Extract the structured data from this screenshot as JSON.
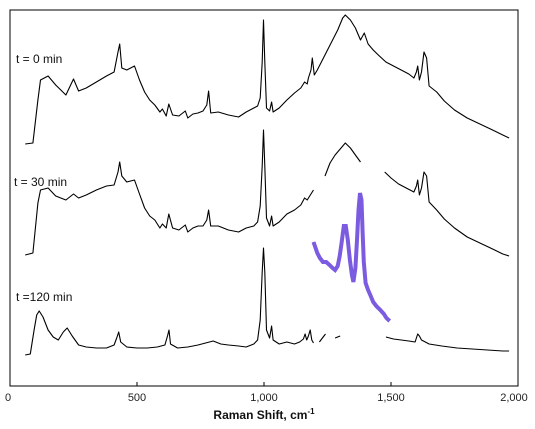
{
  "chart_data": {
    "type": "line",
    "xlabel": "Raman Shift, cm",
    "xlabel_superscript": "-1",
    "xlim": [
      0,
      2000
    ],
    "x_ticks": [
      0,
      500,
      1000,
      1500,
      2000
    ],
    "x_tick_labels": [
      "0",
      "500",
      "1,000",
      "1,500",
      "2,000"
    ],
    "y_axis": "none",
    "grid": false,
    "line_color": "#000000",
    "highlight_color": "#7b5ce0",
    "series": [
      {
        "name": "t = 0 min",
        "segments": [
          [
            [
              60,
              144
            ],
            [
              90,
              143
            ],
            [
              110,
              100
            ],
            [
              120,
              80
            ],
            [
              150,
              76
            ],
            [
              180,
              85
            ],
            [
              220,
              95
            ],
            [
              250,
              79
            ],
            [
              270,
              91
            ],
            [
              300,
              88
            ],
            [
              340,
              82
            ],
            [
              380,
              76
            ],
            [
              410,
              72
            ],
            [
              425,
              52
            ],
            [
              432,
              44
            ],
            [
              440,
              68
            ],
            [
              460,
              70
            ],
            [
              490,
              66
            ],
            [
              510,
              80
            ],
            [
              530,
              92
            ],
            [
              550,
              100
            ],
            [
              570,
              105
            ],
            [
              590,
              112
            ],
            [
              600,
              109
            ],
            [
              615,
              116
            ],
            [
              625,
              104
            ],
            [
              640,
              115
            ],
            [
              665,
              116
            ],
            [
              690,
              111
            ],
            [
              700,
              118
            ],
            [
              720,
              114
            ],
            [
              740,
              113
            ],
            [
              760,
              111
            ],
            [
              775,
              105
            ],
            [
              782,
              91
            ],
            [
              790,
              113
            ],
            [
              820,
              112
            ],
            [
              860,
              115
            ],
            [
              900,
              117
            ],
            [
              930,
              112
            ],
            [
              960,
              108
            ],
            [
              975,
              106
            ],
            [
              985,
              98
            ],
            [
              993,
              62
            ],
            [
              998,
              20
            ],
            [
              1003,
              62
            ],
            [
              1010,
              108
            ],
            [
              1022,
              111
            ],
            [
              1030,
              102
            ],
            [
              1036,
              112
            ],
            [
              1060,
              108
            ],
            [
              1090,
              100
            ],
            [
              1120,
              93
            ],
            [
              1145,
              88
            ],
            [
              1160,
              82
            ],
            [
              1170,
              84
            ],
            [
              1175,
              78
            ],
            [
              1185,
              70
            ],
            [
              1190,
              58
            ],
            [
              1198,
              75
            ],
            [
              1210,
              70
            ],
            [
              1230,
              60
            ],
            [
              1250,
              50
            ],
            [
              1270,
              40
            ],
            [
              1290,
              30
            ],
            [
              1310,
              18
            ],
            [
              1320,
              15
            ],
            [
              1340,
              20
            ],
            [
              1360,
              28
            ],
            [
              1380,
              40
            ],
            [
              1395,
              33
            ],
            [
              1410,
              44
            ],
            [
              1430,
              50
            ],
            [
              1450,
              55
            ],
            [
              1480,
              62
            ],
            [
              1510,
              66
            ],
            [
              1540,
              70
            ],
            [
              1570,
              74
            ],
            [
              1590,
              78
            ],
            [
              1600,
              72
            ],
            [
              1605,
              66
            ],
            [
              1612,
              80
            ],
            [
              1620,
              72
            ],
            [
              1630,
              52
            ],
            [
              1640,
              58
            ],
            [
              1650,
              86
            ],
            [
              1680,
              92
            ],
            [
              1710,
              101
            ],
            [
              1750,
              110
            ],
            [
              1800,
              118
            ],
            [
              1850,
              124
            ],
            [
              1900,
              130
            ],
            [
              1940,
              135
            ],
            [
              1965,
              138
            ]
          ]
        ]
      },
      {
        "name": "t = 30 min",
        "segments": [
          [
            [
              60,
              255
            ],
            [
              90,
              253
            ],
            [
              110,
              203
            ],
            [
              120,
              190
            ],
            [
              150,
              188
            ],
            [
              180,
              196
            ],
            [
              220,
              200
            ],
            [
              250,
              194
            ],
            [
              270,
              198
            ],
            [
              300,
              195
            ],
            [
              340,
              190
            ],
            [
              380,
              186
            ],
            [
              410,
              185
            ],
            [
              425,
              172
            ],
            [
              432,
              162
            ],
            [
              440,
              176
            ],
            [
              460,
              182
            ],
            [
              490,
              180
            ],
            [
              510,
              194
            ],
            [
              530,
              208
            ],
            [
              550,
              216
            ],
            [
              570,
              220
            ],
            [
              590,
              228
            ],
            [
              600,
              224
            ],
            [
              615,
              228
            ],
            [
              625,
              214
            ],
            [
              640,
              228
            ],
            [
              665,
              230
            ],
            [
              690,
              225
            ],
            [
              700,
              232
            ],
            [
              720,
              228
            ],
            [
              740,
              226
            ],
            [
              760,
              226
            ],
            [
              775,
              220
            ],
            [
              782,
              210
            ],
            [
              790,
              226
            ],
            [
              820,
              226
            ],
            [
              860,
              230
            ],
            [
              900,
              232
            ],
            [
              930,
              228
            ],
            [
              960,
              226
            ],
            [
              975,
              222
            ],
            [
              985,
              206
            ],
            [
              993,
              166
            ],
            [
              998,
              130
            ],
            [
              1003,
              166
            ],
            [
              1010,
              218
            ],
            [
              1022,
              226
            ],
            [
              1030,
              216
            ],
            [
              1036,
              226
            ],
            [
              1060,
              222
            ],
            [
              1090,
              214
            ],
            [
              1120,
              210
            ],
            [
              1145,
              205
            ],
            [
              1160,
              198
            ],
            [
              1170,
              200
            ],
            [
              1180,
              196
            ],
            [
              1195,
              190
            ]
          ],
          [
            [
              1240,
              176
            ],
            [
              1260,
              163
            ],
            [
              1280,
              155
            ],
            [
              1300,
              149
            ],
            [
              1320,
              143
            ],
            [
              1340,
              148
            ],
            [
              1360,
              155
            ],
            [
              1380,
              162
            ]
          ],
          [
            [
              1475,
              172
            ],
            [
              1500,
              178
            ],
            [
              1530,
              184
            ],
            [
              1560,
              188
            ],
            [
              1590,
              192
            ],
            [
              1600,
              186
            ],
            [
              1605,
              180
            ],
            [
              1612,
              195
            ],
            [
              1620,
              188
            ],
            [
              1630,
              172
            ],
            [
              1640,
              176
            ],
            [
              1650,
              202
            ],
            [
              1680,
              210
            ],
            [
              1710,
              219
            ],
            [
              1750,
              228
            ],
            [
              1800,
              237
            ],
            [
              1850,
              243
            ],
            [
              1900,
              249
            ],
            [
              1940,
              254
            ],
            [
              1965,
              256
            ]
          ]
        ]
      },
      {
        "name": "t =120 min",
        "segments": [
          [
            [
              60,
              355
            ],
            [
              80,
              354
            ],
            [
              95,
              330
            ],
            [
              105,
              315
            ],
            [
              115,
              311
            ],
            [
              130,
              317
            ],
            [
              150,
              330
            ],
            [
              170,
              337
            ],
            [
              190,
              340
            ],
            [
              210,
              332
            ],
            [
              225,
              328
            ],
            [
              245,
              336
            ],
            [
              270,
              345
            ],
            [
              300,
              347
            ],
            [
              340,
              348
            ],
            [
              380,
              348
            ],
            [
              410,
              345
            ],
            [
              420,
              338
            ],
            [
              428,
              332
            ],
            [
              436,
              342
            ],
            [
              460,
              347
            ],
            [
              500,
              348
            ],
            [
              540,
              348
            ],
            [
              580,
              347
            ],
            [
              610,
              345
            ],
            [
              620,
              336
            ],
            [
              626,
              330
            ],
            [
              632,
              344
            ],
            [
              660,
              348
            ],
            [
              700,
              347
            ],
            [
              740,
              345
            ],
            [
              770,
              343
            ],
            [
              800,
              341
            ],
            [
              830,
              344
            ],
            [
              860,
              345
            ],
            [
              900,
              346
            ],
            [
              930,
              347
            ],
            [
              960,
              344
            ],
            [
              975,
              340
            ],
            [
              985,
              320
            ],
            [
              993,
              272
            ],
            [
              998,
              248
            ],
            [
              1003,
              272
            ],
            [
              1010,
              330
            ],
            [
              1022,
              338
            ],
            [
              1030,
              326
            ],
            [
              1036,
              340
            ],
            [
              1060,
              344
            ],
            [
              1090,
              342
            ],
            [
              1120,
              344
            ],
            [
              1140,
              342
            ],
            [
              1155,
              339
            ],
            [
              1162,
              334
            ],
            [
              1168,
              340
            ],
            [
              1175,
              336
            ],
            [
              1182,
              330
            ],
            [
              1188,
              340
            ],
            [
              1195,
              343
            ]
          ],
          [
            [
              1218,
              342
            ],
            [
              1230,
              338
            ],
            [
              1242,
              334
            ]
          ],
          [
            [
              1280,
              338
            ],
            [
              1300,
              336
            ]
          ],
          [
            [
              1480,
              337
            ],
            [
              1510,
              339
            ],
            [
              1540,
              340
            ],
            [
              1570,
              341
            ],
            [
              1595,
              342
            ],
            [
              1600,
              338
            ],
            [
              1605,
              334
            ],
            [
              1612,
              336
            ],
            [
              1620,
              340
            ],
            [
              1650,
              344
            ],
            [
              1700,
              346
            ],
            [
              1760,
              348
            ],
            [
              1820,
              349
            ],
            [
              1880,
              350
            ],
            [
              1940,
              351
            ],
            [
              1965,
              351
            ]
          ]
        ]
      }
    ],
    "highlight_segment": [
      [
        1195,
        242
      ],
      [
        1210,
        253
      ],
      [
        1220,
        258
      ],
      [
        1232,
        262
      ],
      [
        1245,
        262
      ],
      [
        1258,
        265
      ],
      [
        1270,
        268
      ],
      [
        1280,
        270
      ],
      [
        1290,
        266
      ],
      [
        1298,
        256
      ],
      [
        1306,
        242
      ],
      [
        1314,
        226
      ],
      [
        1322,
        226
      ],
      [
        1330,
        240
      ],
      [
        1338,
        260
      ],
      [
        1346,
        275
      ],
      [
        1352,
        282
      ],
      [
        1360,
        268
      ],
      [
        1366,
        240
      ],
      [
        1372,
        210
      ],
      [
        1378,
        193
      ],
      [
        1384,
        200
      ],
      [
        1388,
        232
      ],
      [
        1393,
        262
      ],
      [
        1400,
        283
      ],
      [
        1410,
        290
      ],
      [
        1420,
        296
      ],
      [
        1430,
        302
      ],
      [
        1442,
        306
      ],
      [
        1458,
        310
      ],
      [
        1472,
        314
      ],
      [
        1482,
        318
      ],
      [
        1495,
        321
      ]
    ]
  }
}
